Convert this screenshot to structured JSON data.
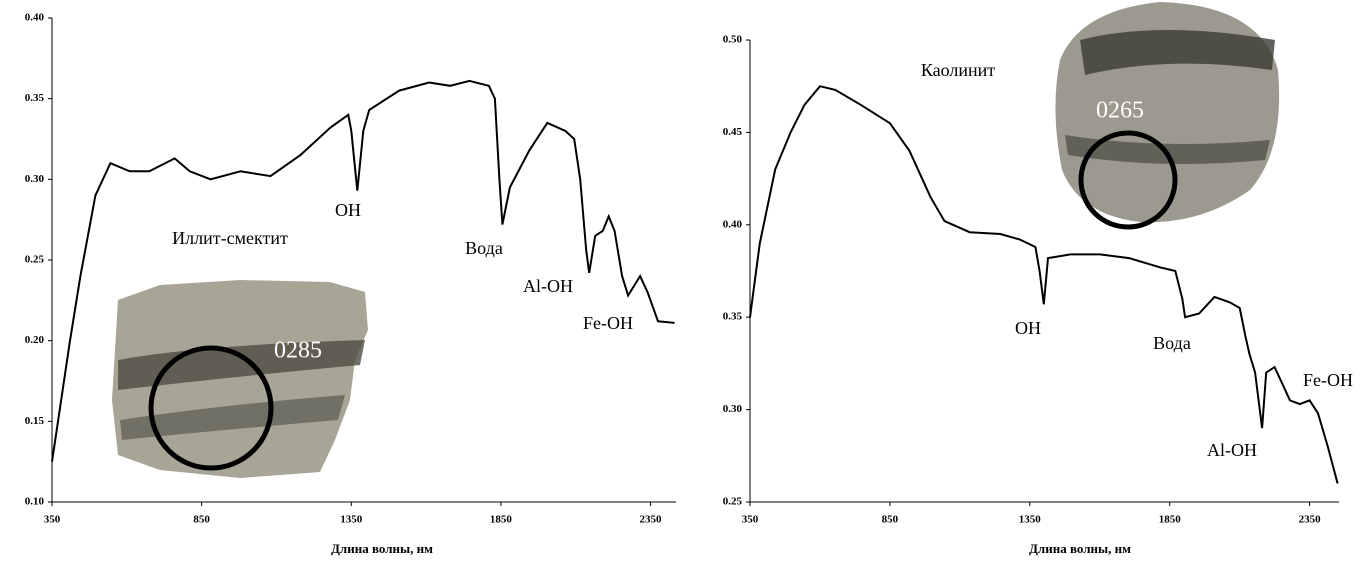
{
  "chart_data": [
    {
      "type": "line",
      "x": [
        350,
        410,
        445,
        495,
        545,
        610,
        675,
        760,
        810,
        880,
        980,
        1080,
        1180,
        1280,
        1340,
        1350,
        1370,
        1390,
        1410,
        1510,
        1610,
        1680,
        1745,
        1810,
        1830,
        1845,
        1855,
        1880,
        1945,
        2005,
        2065,
        2095,
        2115,
        2135,
        2145,
        2165,
        2190,
        2210,
        2230,
        2255,
        2275,
        2315,
        2340,
        2375,
        2430
      ],
      "series": [
        {
          "color": "#000000",
          "values": [
            0.125,
            0.2,
            0.24,
            0.29,
            0.31,
            0.305,
            0.305,
            0.313,
            0.305,
            0.3,
            0.305,
            0.302,
            0.315,
            0.332,
            0.34,
            0.33,
            0.293,
            0.33,
            0.343,
            0.355,
            0.36,
            0.358,
            0.361,
            0.358,
            0.35,
            0.3,
            0.272,
            0.295,
            0.318,
            0.335,
            0.33,
            0.325,
            0.3,
            0.256,
            0.242,
            0.265,
            0.268,
            0.277,
            0.268,
            0.24,
            0.228,
            0.24,
            0.23,
            0.212,
            0.211
          ]
        }
      ],
      "xlim": [
        350,
        2435
      ],
      "ylim": [
        0.1,
        0.4
      ],
      "xticks": [
        350,
        850,
        1350,
        1850,
        2350
      ],
      "yticks": [
        {
          "value": 0.1,
          "label": "0.10"
        },
        {
          "value": 0.15,
          "label": "0.15"
        },
        {
          "value": 0.2,
          "label": "0.20"
        },
        {
          "value": 0.25,
          "label": "0.25"
        },
        {
          "value": 0.3,
          "label": "0.30"
        },
        {
          "value": 0.35,
          "label": "0.35"
        },
        {
          "value": 0.4,
          "label": "0.40"
        }
      ],
      "xlabel": "Длина волны, нм",
      "annotations": [
        "OH",
        "Иллит-смектит",
        "Вода",
        "Al-OH",
        "Fe-OH"
      ],
      "photo_label": "0285"
    },
    {
      "type": "line",
      "x": [
        350,
        385,
        440,
        495,
        545,
        600,
        655,
        745,
        850,
        920,
        995,
        1045,
        1135,
        1245,
        1315,
        1370,
        1385,
        1400,
        1415,
        1495,
        1600,
        1705,
        1815,
        1870,
        1895,
        1905,
        1955,
        2010,
        2065,
        2100,
        2120,
        2135,
        2155,
        2180,
        2195,
        2225,
        2280,
        2315,
        2350,
        2380,
        2415,
        2450
      ],
      "series": [
        {
          "color": "#000000",
          "values": [
            0.35,
            0.39,
            0.43,
            0.45,
            0.465,
            0.475,
            0.473,
            0.465,
            0.455,
            0.44,
            0.415,
            0.402,
            0.396,
            0.395,
            0.392,
            0.388,
            0.375,
            0.357,
            0.382,
            0.384,
            0.384,
            0.382,
            0.377,
            0.375,
            0.36,
            0.35,
            0.352,
            0.361,
            0.358,
            0.355,
            0.34,
            0.33,
            0.32,
            0.29,
            0.32,
            0.323,
            0.305,
            0.303,
            0.305,
            0.298,
            0.28,
            0.26
          ]
        }
      ],
      "xlim": [
        350,
        2455
      ],
      "ylim": [
        0.25,
        0.5
      ],
      "xticks": [
        350,
        850,
        1350,
        1850,
        2350
      ],
      "yticks": [
        {
          "value": 0.25,
          "label": "0.25"
        },
        {
          "value": 0.3,
          "label": "0.30"
        },
        {
          "value": 0.35,
          "label": "0.35"
        },
        {
          "value": 0.4,
          "label": "0.40"
        },
        {
          "value": 0.45,
          "label": "0.45"
        },
        {
          "value": 0.5,
          "label": "0.50"
        }
      ],
      "xlabel": "Длина волны, нм",
      "annotations": [
        "Каолинит",
        "OH",
        "Вода",
        "Al-OH",
        "Fe-OH"
      ],
      "photo_label": "0265"
    }
  ]
}
